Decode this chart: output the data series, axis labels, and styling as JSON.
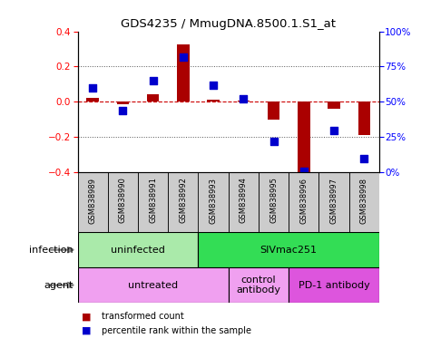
{
  "title": "GDS4235 / MmugDNA.8500.1.S1_at",
  "samples": [
    "GSM838989",
    "GSM838990",
    "GSM838991",
    "GSM838992",
    "GSM838993",
    "GSM838994",
    "GSM838995",
    "GSM838996",
    "GSM838997",
    "GSM838998"
  ],
  "bar_values": [
    0.022,
    -0.012,
    0.042,
    0.325,
    0.01,
    0.005,
    -0.1,
    -0.41,
    -0.04,
    -0.19
  ],
  "dot_values": [
    60,
    44,
    65,
    82,
    62,
    52,
    22,
    1,
    30,
    10
  ],
  "bar_color": "#aa0000",
  "dot_color": "#0000cc",
  "ylim": [
    -0.4,
    0.4
  ],
  "yticks": [
    -0.4,
    -0.2,
    0.0,
    0.2,
    0.4
  ],
  "right_yticks": [
    0,
    25,
    50,
    75,
    100
  ],
  "right_yticklabels": [
    "0%",
    "25%",
    "50%",
    "75%",
    "100%"
  ],
  "hline_color": "#cc0000",
  "dotted_line_color": "#555555",
  "infection_groups": [
    {
      "text": "uninfected",
      "start": 0,
      "end": 3,
      "color": "#aaeaaa"
    },
    {
      "text": "SIVmac251",
      "start": 4,
      "end": 9,
      "color": "#33dd55"
    }
  ],
  "agent_groups": [
    {
      "text": "untreated",
      "start": 0,
      "end": 4,
      "color": "#f0a0f0"
    },
    {
      "text": "control\nantibody",
      "start": 5,
      "end": 6,
      "color": "#f0a0f0"
    },
    {
      "text": "PD-1 antibody",
      "start": 7,
      "end": 9,
      "color": "#dd55dd"
    }
  ],
  "legend_items": [
    {
      "label": "transformed count",
      "color": "#aa0000"
    },
    {
      "label": "percentile rank within the sample",
      "color": "#0000cc"
    }
  ],
  "infection_row_label": "infection",
  "agent_row_label": "agent",
  "sample_bg": "#cccccc",
  "background_color": "#ffffff"
}
